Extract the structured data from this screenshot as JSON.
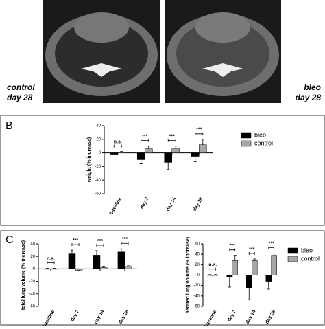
{
  "panel_labels": {
    "b": "B",
    "c": "C"
  },
  "images": [
    {
      "line1": "control",
      "line2": "day 28"
    },
    {
      "line1": "bleo",
      "line2": "day 28"
    }
  ],
  "chart_data": [
    {
      "type": "bar",
      "y_label": "weight (% increase)",
      "categories": [
        "baseline",
        "day 7",
        "day 14",
        "day 28"
      ],
      "annotations": [
        "n.s.",
        "***",
        "***",
        "***"
      ],
      "series": [
        {
          "name": "bleo",
          "color": "#000000",
          "values": [
            -2,
            -10,
            -14,
            -5
          ],
          "errors": [
            1,
            6,
            10,
            8
          ]
        },
        {
          "name": "control",
          "color": "#a6a6a6",
          "values": [
            1,
            6,
            6,
            12
          ],
          "errors": [
            1,
            4,
            4,
            8
          ]
        }
      ],
      "ylim": [
        -60,
        40
      ],
      "yticks": [
        -60,
        -40,
        -20,
        0,
        20,
        40
      ],
      "legend": "right"
    },
    {
      "type": "bar",
      "y_label": "total lung volume (% increase)",
      "categories": [
        "baseline",
        "day 7",
        "day 14",
        "day 28"
      ],
      "annotations": [
        "n.s.",
        "***",
        "***",
        "***"
      ],
      "series": [
        {
          "name": "bleo",
          "color": "#000000",
          "values": [
            0,
            24,
            22,
            27
          ],
          "errors": [
            1,
            6,
            7,
            5
          ]
        },
        {
          "name": "control",
          "color": "#a6a6a6",
          "values": [
            0,
            -2,
            2,
            4
          ],
          "errors": [
            1,
            1,
            1,
            1
          ]
        }
      ],
      "ylim": [
        -60,
        40
      ],
      "yticks": [
        -60,
        -40,
        -20,
        0,
        20,
        40
      ]
    },
    {
      "type": "bar",
      "y_label": "aerated lung volume (% increase)",
      "categories": [
        "baseline",
        "day 7",
        "day 14",
        "day 28"
      ],
      "annotations": [
        "n.s.",
        "***",
        "***",
        "***"
      ],
      "series": [
        {
          "name": "bleo",
          "color": "#000000",
          "values": [
            0,
            -3,
            -25,
            -12
          ],
          "errors": [
            1,
            20,
            22,
            15
          ]
        },
        {
          "name": "control",
          "color": "#a6a6a6",
          "values": [
            0,
            28,
            28,
            38
          ],
          "errors": [
            1,
            10,
            3,
            4
          ]
        }
      ],
      "ylim": [
        -60,
        60
      ],
      "yticks": [
        -60,
        -40,
        -20,
        0,
        20,
        40,
        60
      ],
      "legend": "right"
    }
  ]
}
